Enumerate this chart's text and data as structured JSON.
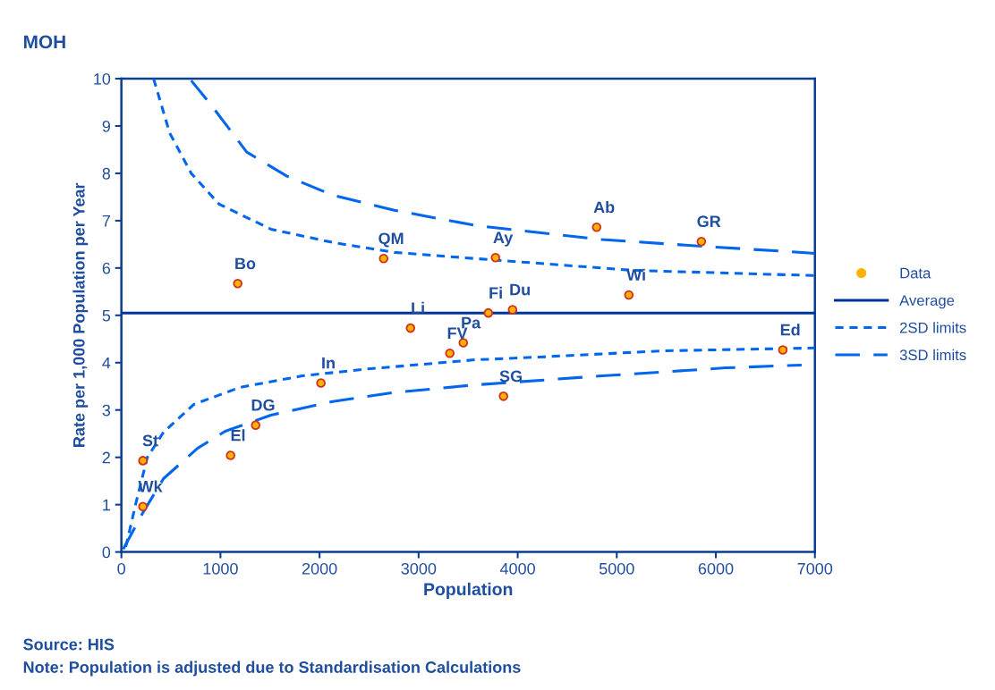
{
  "chart_data": {
    "type": "scatter",
    "title": "MOH",
    "xlabel": "Population",
    "ylabel": "Rate per 1,000 Population per Year",
    "annotations": [
      "Source: HIS",
      "Note: Population is adjusted due to Standardisation Calculations"
    ],
    "xlim": [
      0,
      7000
    ],
    "xticks": [
      0,
      1000,
      2000,
      3000,
      4000,
      5000,
      6000,
      7000
    ],
    "ylim": [
      0,
      10
    ],
    "yticks": [
      0,
      1,
      2,
      3,
      4,
      5,
      6,
      7,
      8,
      9,
      10
    ],
    "grid": false,
    "legend": "right",
    "series": [
      {
        "name": "Data",
        "marker": "circle",
        "color": "#ffb300",
        "x": [
          1174,
          2647,
          2918,
          3315,
          3451,
          2014,
          1355,
          1102,
          217,
          217,
          3776,
          4797,
          5854,
          5122,
          3704,
          3948,
          6676,
          3857
        ],
        "values": [
          5.67,
          6.2,
          4.73,
          4.2,
          4.42,
          3.57,
          2.68,
          2.04,
          1.93,
          0.96,
          6.22,
          6.86,
          6.56,
          5.43,
          5.05,
          5.12,
          4.27,
          3.29
        ],
        "value_labels": [
          "Bo",
          "QM",
          "Li",
          "FV",
          "Pa",
          "In",
          "DG",
          "El",
          "St",
          "Wk",
          "Ay",
          "Ab",
          "GR",
          "Wi",
          "Fi",
          "Du",
          "Ed",
          "SG"
        ]
      },
      {
        "name": "Average",
        "type": "line",
        "line_style": "solid",
        "color": "#003399",
        "x": [
          0,
          7000
        ],
        "values": [
          5.05,
          5.05
        ]
      },
      {
        "name": "2SD limits",
        "type": "line",
        "line_style": "dotted",
        "color": "#0066ee",
        "x": [
          325,
          488,
          705,
          985,
          1509,
          2132,
          2755,
          3568,
          5167,
          7000
        ],
        "values": [
          10.0,
          8.85,
          8.0,
          7.35,
          6.82,
          6.54,
          6.33,
          6.2,
          5.95,
          5.84
        ]
      },
      {
        "type": "line",
        "line_style": "dotted",
        "color": "#0066ee",
        "x": [
          45,
          145,
          262,
          425,
          732,
          1201,
          1825,
          2448,
          3568,
          4228,
          5474,
          7000
        ],
        "values": [
          0.11,
          1.02,
          2.0,
          2.53,
          3.12,
          3.48,
          3.72,
          3.86,
          4.06,
          4.12,
          4.25,
          4.31
        ]
      },
      {
        "name": "3SD limits",
        "type": "line",
        "line_style": "dashed",
        "color": "#0066ee",
        "x": [
          705,
          885,
          1265,
          1671,
          2132,
          2755,
          3568,
          4851,
          5790,
          7000
        ],
        "values": [
          9.96,
          9.5,
          8.45,
          7.94,
          7.54,
          7.22,
          6.9,
          6.6,
          6.47,
          6.31
        ]
      },
      {
        "type": "line",
        "line_style": "dashed",
        "color": "#0066ee",
        "x": [
          18,
          217,
          425,
          768,
          1048,
          1509,
          2132,
          2755,
          3568,
          4851,
          6098,
          6866
        ],
        "values": [
          0.06,
          0.83,
          1.55,
          2.19,
          2.55,
          2.89,
          3.18,
          3.37,
          3.53,
          3.72,
          3.89,
          3.95
        ]
      }
    ]
  }
}
